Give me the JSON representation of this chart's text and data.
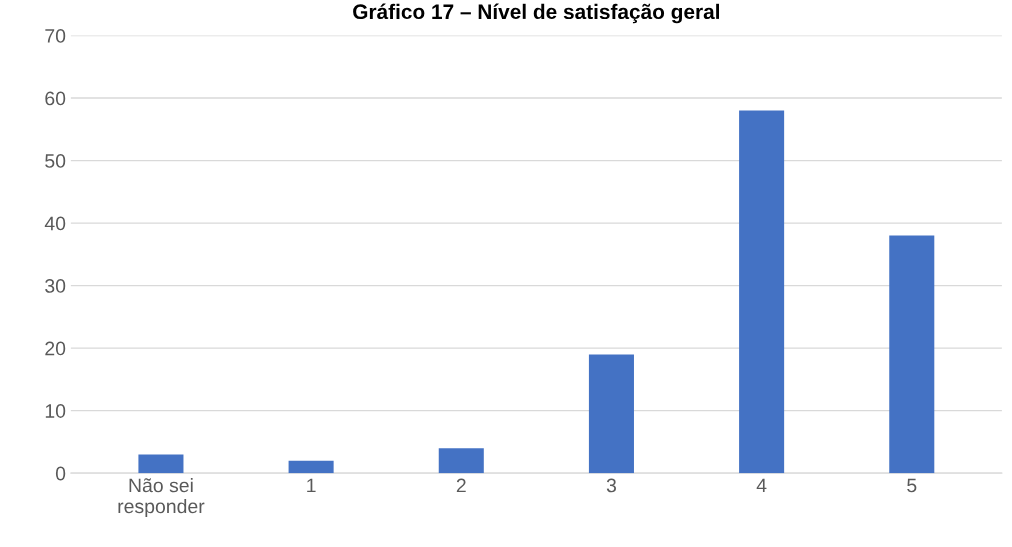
{
  "chart_data": {
    "type": "bar",
    "title": "Gráfico 17 – Nível de satisfação geral",
    "categories": [
      "Não sei\nresponder",
      "1",
      "2",
      "3",
      "4",
      "5"
    ],
    "values": [
      3,
      2,
      4,
      19,
      58,
      38
    ],
    "color": "#4472c4",
    "ylim": [
      0,
      70
    ],
    "yticks": [
      0,
      10,
      20,
      30,
      40,
      50,
      60,
      70
    ],
    "grid": "y",
    "legend": false
  }
}
